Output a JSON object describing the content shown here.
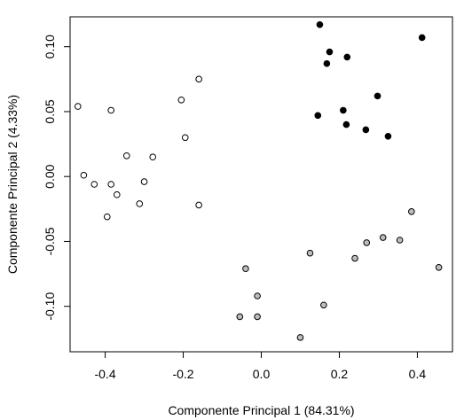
{
  "chart_data": {
    "type": "scatter",
    "xlabel": "Componente Principal 1 (84.31%)",
    "ylabel": "Componente Principal 2 (4.33%)",
    "xlim": [
      -0.49,
      0.49
    ],
    "ylim": [
      -0.135,
      0.123
    ],
    "xticks": [
      -0.4,
      -0.2,
      0.0,
      0.2,
      0.4
    ],
    "xtick_labels": [
      "-0.4",
      "-0.2",
      "0.0",
      "0.2",
      "0.4"
    ],
    "yticks": [
      -0.1,
      -0.05,
      0.0,
      0.05,
      0.1
    ],
    "ytick_labels": [
      "-0.10",
      "-0.05",
      "0.00",
      "0.05",
      "0.10"
    ],
    "grid": false,
    "colors": {
      "group_black": "#000000",
      "group_white": "#ffffff",
      "group_gray": "#bebebe"
    },
    "series": [
      {
        "color": "#000000",
        "points": [
          [
            0.15,
            0.117
          ],
          [
            0.175,
            0.096
          ],
          [
            0.168,
            0.087
          ],
          [
            0.22,
            0.092
          ],
          [
            0.412,
            0.107
          ],
          [
            0.298,
            0.062
          ],
          [
            0.21,
            0.051
          ],
          [
            0.145,
            0.047
          ],
          [
            0.218,
            0.04
          ],
          [
            0.268,
            0.036
          ],
          [
            0.325,
            0.031
          ]
        ]
      },
      {
        "color": "#ffffff",
        "points": [
          [
            -0.47,
            0.054
          ],
          [
            -0.385,
            0.051
          ],
          [
            -0.205,
            0.059
          ],
          [
            -0.16,
            0.075
          ],
          [
            -0.195,
            0.03
          ],
          [
            -0.345,
            0.016
          ],
          [
            -0.278,
            0.015
          ],
          [
            -0.455,
            0.001
          ],
          [
            -0.428,
            -0.006
          ],
          [
            -0.385,
            -0.006
          ],
          [
            -0.3,
            -0.004
          ],
          [
            -0.37,
            -0.014
          ],
          [
            -0.312,
            -0.021
          ],
          [
            -0.395,
            -0.031
          ],
          [
            -0.16,
            -0.022
          ]
        ]
      },
      {
        "color": "#bebebe",
        "points": [
          [
            0.385,
            -0.027
          ],
          [
            0.355,
            -0.049
          ],
          [
            0.312,
            -0.047
          ],
          [
            0.27,
            -0.051
          ],
          [
            0.455,
            -0.07
          ],
          [
            0.125,
            -0.059
          ],
          [
            0.24,
            -0.063
          ],
          [
            -0.04,
            -0.071
          ],
          [
            -0.01,
            -0.092
          ],
          [
            0.16,
            -0.099
          ],
          [
            -0.055,
            -0.108
          ],
          [
            -0.01,
            -0.108
          ],
          [
            0.1,
            -0.124
          ]
        ]
      }
    ]
  }
}
